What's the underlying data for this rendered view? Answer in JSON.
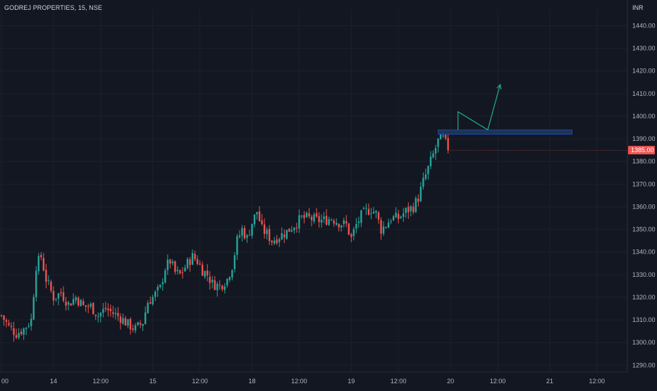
{
  "header": {
    "symbol": "GODREJ PROPERTIES, 15, NSE",
    "currency": "INR"
  },
  "chart_data": {
    "type": "candlestick",
    "ylim": [
      1287,
      1447
    ],
    "y_ticks": [
      1290,
      1300,
      1310,
      1320,
      1330,
      1340,
      1350,
      1360,
      1370,
      1380,
      1390,
      1400,
      1410,
      1420,
      1430,
      1440
    ],
    "y_tick_labels": [
      "1290.00",
      "1300.00",
      "1310.00",
      "1320.00",
      "1330.00",
      "1340.00",
      "1350.00",
      "1360.00",
      "1370.00",
      "1380.00",
      "1390.00",
      "1400.00",
      "1410.00",
      "1420.00",
      "1430.00",
      "1440.00"
    ],
    "x_ticks": [
      {
        "index": 0,
        "label": "00"
      },
      {
        "index": 21,
        "label": "14"
      },
      {
        "index": 40,
        "label": "12:00"
      },
      {
        "index": 61,
        "label": "15"
      },
      {
        "index": 80,
        "label": "12:00"
      },
      {
        "index": 101,
        "label": "18"
      },
      {
        "index": 120,
        "label": "12:00"
      },
      {
        "index": 141,
        "label": "19"
      },
      {
        "index": 160,
        "label": "12:00"
      },
      {
        "index": 181,
        "label": "20"
      },
      {
        "index": 200,
        "label": "12:00"
      },
      {
        "index": 221,
        "label": "21"
      },
      {
        "index": 240,
        "label": "12:00"
      }
    ],
    "last_price": 1385.0,
    "last_price_label": "1385.00",
    "ohlc_summary": {
      "open": 1312,
      "high": 1391,
      "low": 1302,
      "close": 1385
    },
    "colors": {
      "up": "#26a69a",
      "down": "#ef5350",
      "background": "#131722",
      "text": "#d1d4dc",
      "zone_fill": "#1e3a5f",
      "zone_stroke": "#2962ff",
      "arrow": "#22ab94"
    },
    "annotations": {
      "resistance_zone": {
        "start_index": 176,
        "end_index": 230,
        "low": 1392,
        "high": 1394
      },
      "projection_path": [
        {
          "index": 184,
          "price": 1394
        },
        {
          "index": 184,
          "price": 1402
        },
        {
          "index": 196,
          "price": 1394
        },
        {
          "index": 201,
          "price": 1414
        }
      ]
    }
  }
}
